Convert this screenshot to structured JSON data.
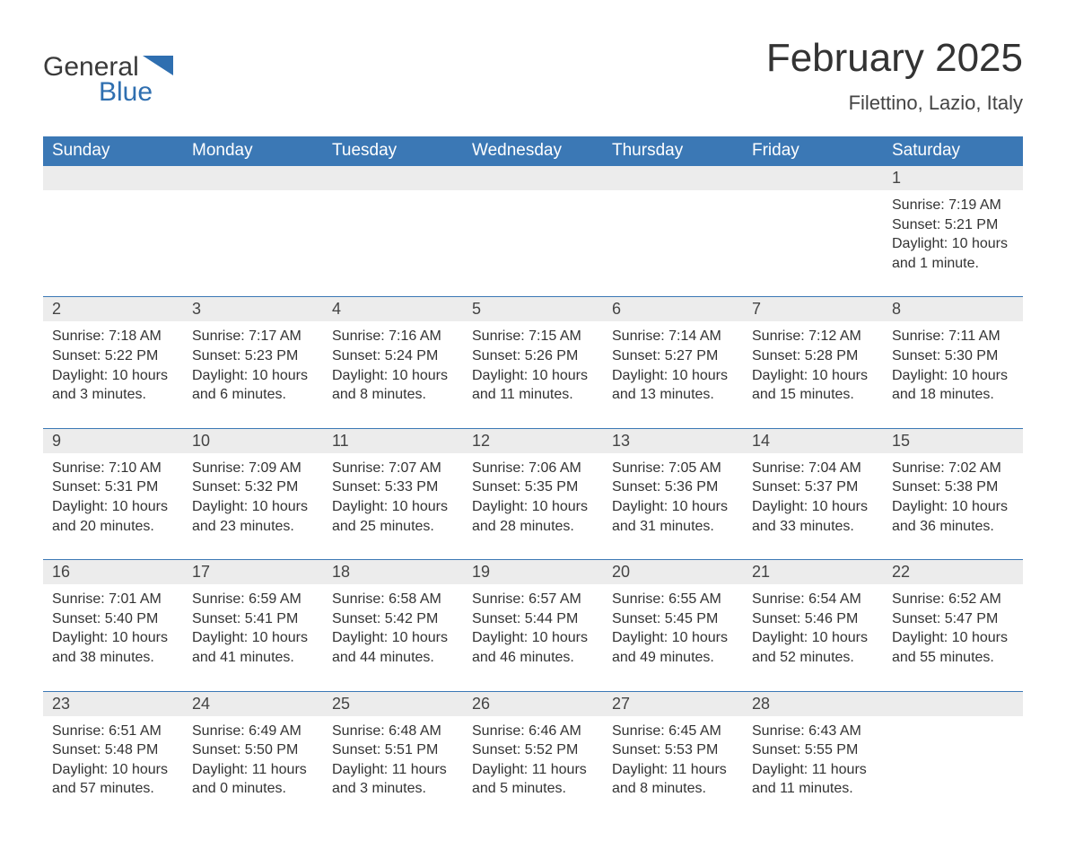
{
  "brand": {
    "word1": "General",
    "word2": "Blue",
    "logo_color": "#2f6fb0"
  },
  "header": {
    "title": "February 2025",
    "subtitle": "Filettino, Lazio, Italy"
  },
  "calendar": {
    "header_bg": "#3b78b5",
    "header_fg": "#ffffff",
    "daynum_bg": "#ececec",
    "row_divider": "#3b78b5",
    "text_color": "#333333",
    "font_family": "Arial",
    "columns": [
      "Sunday",
      "Monday",
      "Tuesday",
      "Wednesday",
      "Thursday",
      "Friday",
      "Saturday"
    ],
    "weeks": [
      [
        null,
        null,
        null,
        null,
        null,
        null,
        {
          "day": "1",
          "sunrise": "Sunrise: 7:19 AM",
          "sunset": "Sunset: 5:21 PM",
          "daylight": "Daylight: 10 hours and 1 minute."
        }
      ],
      [
        {
          "day": "2",
          "sunrise": "Sunrise: 7:18 AM",
          "sunset": "Sunset: 5:22 PM",
          "daylight": "Daylight: 10 hours and 3 minutes."
        },
        {
          "day": "3",
          "sunrise": "Sunrise: 7:17 AM",
          "sunset": "Sunset: 5:23 PM",
          "daylight": "Daylight: 10 hours and 6 minutes."
        },
        {
          "day": "4",
          "sunrise": "Sunrise: 7:16 AM",
          "sunset": "Sunset: 5:24 PM",
          "daylight": "Daylight: 10 hours and 8 minutes."
        },
        {
          "day": "5",
          "sunrise": "Sunrise: 7:15 AM",
          "sunset": "Sunset: 5:26 PM",
          "daylight": "Daylight: 10 hours and 11 minutes."
        },
        {
          "day": "6",
          "sunrise": "Sunrise: 7:14 AM",
          "sunset": "Sunset: 5:27 PM",
          "daylight": "Daylight: 10 hours and 13 minutes."
        },
        {
          "day": "7",
          "sunrise": "Sunrise: 7:12 AM",
          "sunset": "Sunset: 5:28 PM",
          "daylight": "Daylight: 10 hours and 15 minutes."
        },
        {
          "day": "8",
          "sunrise": "Sunrise: 7:11 AM",
          "sunset": "Sunset: 5:30 PM",
          "daylight": "Daylight: 10 hours and 18 minutes."
        }
      ],
      [
        {
          "day": "9",
          "sunrise": "Sunrise: 7:10 AM",
          "sunset": "Sunset: 5:31 PM",
          "daylight": "Daylight: 10 hours and 20 minutes."
        },
        {
          "day": "10",
          "sunrise": "Sunrise: 7:09 AM",
          "sunset": "Sunset: 5:32 PM",
          "daylight": "Daylight: 10 hours and 23 minutes."
        },
        {
          "day": "11",
          "sunrise": "Sunrise: 7:07 AM",
          "sunset": "Sunset: 5:33 PM",
          "daylight": "Daylight: 10 hours and 25 minutes."
        },
        {
          "day": "12",
          "sunrise": "Sunrise: 7:06 AM",
          "sunset": "Sunset: 5:35 PM",
          "daylight": "Daylight: 10 hours and 28 minutes."
        },
        {
          "day": "13",
          "sunrise": "Sunrise: 7:05 AM",
          "sunset": "Sunset: 5:36 PM",
          "daylight": "Daylight: 10 hours and 31 minutes."
        },
        {
          "day": "14",
          "sunrise": "Sunrise: 7:04 AM",
          "sunset": "Sunset: 5:37 PM",
          "daylight": "Daylight: 10 hours and 33 minutes."
        },
        {
          "day": "15",
          "sunrise": "Sunrise: 7:02 AM",
          "sunset": "Sunset: 5:38 PM",
          "daylight": "Daylight: 10 hours and 36 minutes."
        }
      ],
      [
        {
          "day": "16",
          "sunrise": "Sunrise: 7:01 AM",
          "sunset": "Sunset: 5:40 PM",
          "daylight": "Daylight: 10 hours and 38 minutes."
        },
        {
          "day": "17",
          "sunrise": "Sunrise: 6:59 AM",
          "sunset": "Sunset: 5:41 PM",
          "daylight": "Daylight: 10 hours and 41 minutes."
        },
        {
          "day": "18",
          "sunrise": "Sunrise: 6:58 AM",
          "sunset": "Sunset: 5:42 PM",
          "daylight": "Daylight: 10 hours and 44 minutes."
        },
        {
          "day": "19",
          "sunrise": "Sunrise: 6:57 AM",
          "sunset": "Sunset: 5:44 PM",
          "daylight": "Daylight: 10 hours and 46 minutes."
        },
        {
          "day": "20",
          "sunrise": "Sunrise: 6:55 AM",
          "sunset": "Sunset: 5:45 PM",
          "daylight": "Daylight: 10 hours and 49 minutes."
        },
        {
          "day": "21",
          "sunrise": "Sunrise: 6:54 AM",
          "sunset": "Sunset: 5:46 PM",
          "daylight": "Daylight: 10 hours and 52 minutes."
        },
        {
          "day": "22",
          "sunrise": "Sunrise: 6:52 AM",
          "sunset": "Sunset: 5:47 PM",
          "daylight": "Daylight: 10 hours and 55 minutes."
        }
      ],
      [
        {
          "day": "23",
          "sunrise": "Sunrise: 6:51 AM",
          "sunset": "Sunset: 5:48 PM",
          "daylight": "Daylight: 10 hours and 57 minutes."
        },
        {
          "day": "24",
          "sunrise": "Sunrise: 6:49 AM",
          "sunset": "Sunset: 5:50 PM",
          "daylight": "Daylight: 11 hours and 0 minutes."
        },
        {
          "day": "25",
          "sunrise": "Sunrise: 6:48 AM",
          "sunset": "Sunset: 5:51 PM",
          "daylight": "Daylight: 11 hours and 3 minutes."
        },
        {
          "day": "26",
          "sunrise": "Sunrise: 6:46 AM",
          "sunset": "Sunset: 5:52 PM",
          "daylight": "Daylight: 11 hours and 5 minutes."
        },
        {
          "day": "27",
          "sunrise": "Sunrise: 6:45 AM",
          "sunset": "Sunset: 5:53 PM",
          "daylight": "Daylight: 11 hours and 8 minutes."
        },
        {
          "day": "28",
          "sunrise": "Sunrise: 6:43 AM",
          "sunset": "Sunset: 5:55 PM",
          "daylight": "Daylight: 11 hours and 11 minutes."
        },
        null
      ]
    ]
  }
}
